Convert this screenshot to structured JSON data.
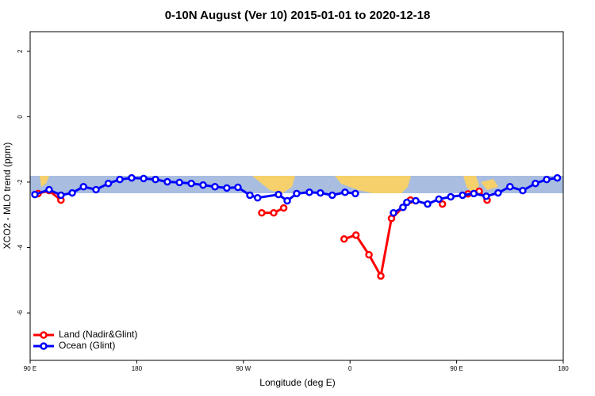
{
  "chart_data": {
    "type": "line",
    "title": "0-10N August (Ver 10)   2015-01-01 to 2020-12-18",
    "x_label": "Longitude (deg E)",
    "y_label": "XCO2 - MLO trend (ppm)",
    "xlim": [
      90,
      540
    ],
    "ylim": [
      -7.45,
      2.6
    ],
    "xticks": [
      {
        "value": 90,
        "label": "90 E"
      },
      180,
      {
        "value": 270,
        "label": "90 W"
      },
      {
        "value": 360,
        "label": "0"
      },
      {
        "value": 450,
        "label": "90 E"
      },
      {
        "value": 540,
        "label": "180"
      }
    ],
    "yticks": [
      2,
      0,
      -2,
      -4,
      -6
    ],
    "legend": "bottom-left",
    "series": [
      {
        "name": "Land (Nadir&Glint)",
        "color": "#ff0000",
        "x": [
          96.7,
          106,
          116,
          null,
          285.5,
          295.6,
          304,
          null,
          355,
          365,
          376,
          386,
          395,
          404.7,
          411,
          null,
          438,
          null,
          459.6,
          469,
          475.7
        ],
        "values": [
          -2.35,
          -2.26,
          -2.55,
          null,
          -2.94,
          -2.94,
          -2.79,
          null,
          -3.74,
          -3.62,
          -4.22,
          -4.87,
          -3.11,
          -2.77,
          -2.55,
          null,
          -2.67,
          null,
          -2.36,
          -2.28,
          -2.55
        ]
      },
      {
        "name": "Ocean (Glint)",
        "color": "#0000ff",
        "x": [
          94,
          106,
          116,
          125.5,
          135,
          145.6,
          156,
          165.7,
          175.7,
          185.8,
          195.8,
          205.8,
          216,
          226,
          236,
          246,
          256,
          265.4,
          275.5,
          282,
          299.6,
          307,
          315,
          325.7,
          335,
          345,
          355.8,
          364.5,
          null,
          396.7,
          404.7,
          408,
          415.5,
          425.5,
          435,
          445,
          455,
          464.5,
          475,
          485,
          495,
          505.8,
          516.5,
          526,
          535
        ],
        "values": [
          -2.38,
          -2.23,
          -2.4,
          -2.33,
          -2.14,
          -2.23,
          -2.04,
          -1.92,
          -1.87,
          -1.89,
          -1.92,
          -1.99,
          -2.01,
          -2.04,
          -2.09,
          -2.14,
          -2.18,
          -2.16,
          -2.4,
          -2.48,
          -2.38,
          -2.57,
          -2.35,
          -2.31,
          -2.33,
          -2.4,
          -2.31,
          -2.35,
          null,
          -2.94,
          -2.77,
          -2.62,
          -2.57,
          -2.67,
          -2.52,
          -2.45,
          -2.4,
          -2.35,
          -2.43,
          -2.33,
          -2.14,
          -2.26,
          -2.04,
          -1.92,
          -1.87
        ]
      }
    ]
  }
}
